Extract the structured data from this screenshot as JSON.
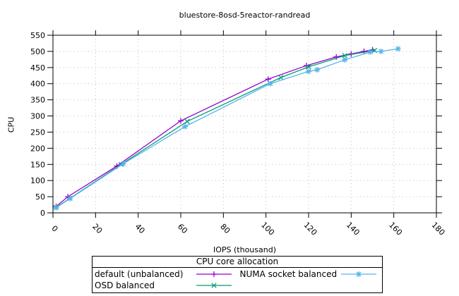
{
  "chart_data": {
    "type": "line",
    "title": "bluestore-8osd-5reactor-randread",
    "xlabel": "IOPS (thousand)",
    "ylabel": "CPU",
    "xlim": [
      0,
      180
    ],
    "ylim": [
      0,
      550
    ],
    "xticks": [
      0,
      20,
      40,
      60,
      80,
      100,
      120,
      140,
      160,
      180
    ],
    "yticks": [
      0,
      50,
      100,
      150,
      200,
      250,
      300,
      350,
      400,
      450,
      500,
      550
    ],
    "grid": true,
    "grid_style": "dotted",
    "legend_title": "CPU core allocation",
    "legend_position": "bottom-center",
    "colors": {
      "background": "#ffffff",
      "axis": "#000000",
      "grid": "#bdbdbd",
      "text": "#000000"
    },
    "series": [
      {
        "name": "default (unbalanced)",
        "color": "#9400d3",
        "marker": "plus",
        "points": [
          [
            1.5,
            20
          ],
          [
            7,
            50
          ],
          [
            30,
            145
          ],
          [
            60,
            285
          ],
          [
            101,
            414
          ],
          [
            119,
            456
          ],
          [
            133,
            483
          ],
          [
            140,
            492
          ],
          [
            146,
            500
          ],
          [
            150,
            505
          ]
        ]
      },
      {
        "name": "OSD balanced",
        "color": "#009e73",
        "marker": "cross",
        "points": [
          [
            1.5,
            17
          ],
          [
            8,
            45
          ],
          [
            32,
            150
          ],
          [
            63,
            283
          ],
          [
            107,
            419
          ],
          [
            120,
            452
          ],
          [
            137,
            487
          ],
          [
            151,
            503
          ]
        ]
      },
      {
        "name": "NUMA socket balanced",
        "color": "#56b4e9",
        "marker": "asterisk",
        "points": [
          [
            1.5,
            16
          ],
          [
            8,
            44
          ],
          [
            33,
            152
          ],
          [
            62,
            267
          ],
          [
            102,
            400
          ],
          [
            120,
            438
          ],
          [
            124,
            443
          ],
          [
            137,
            474
          ],
          [
            149,
            498
          ],
          [
            154,
            500
          ],
          [
            162,
            508
          ]
        ]
      }
    ]
  }
}
